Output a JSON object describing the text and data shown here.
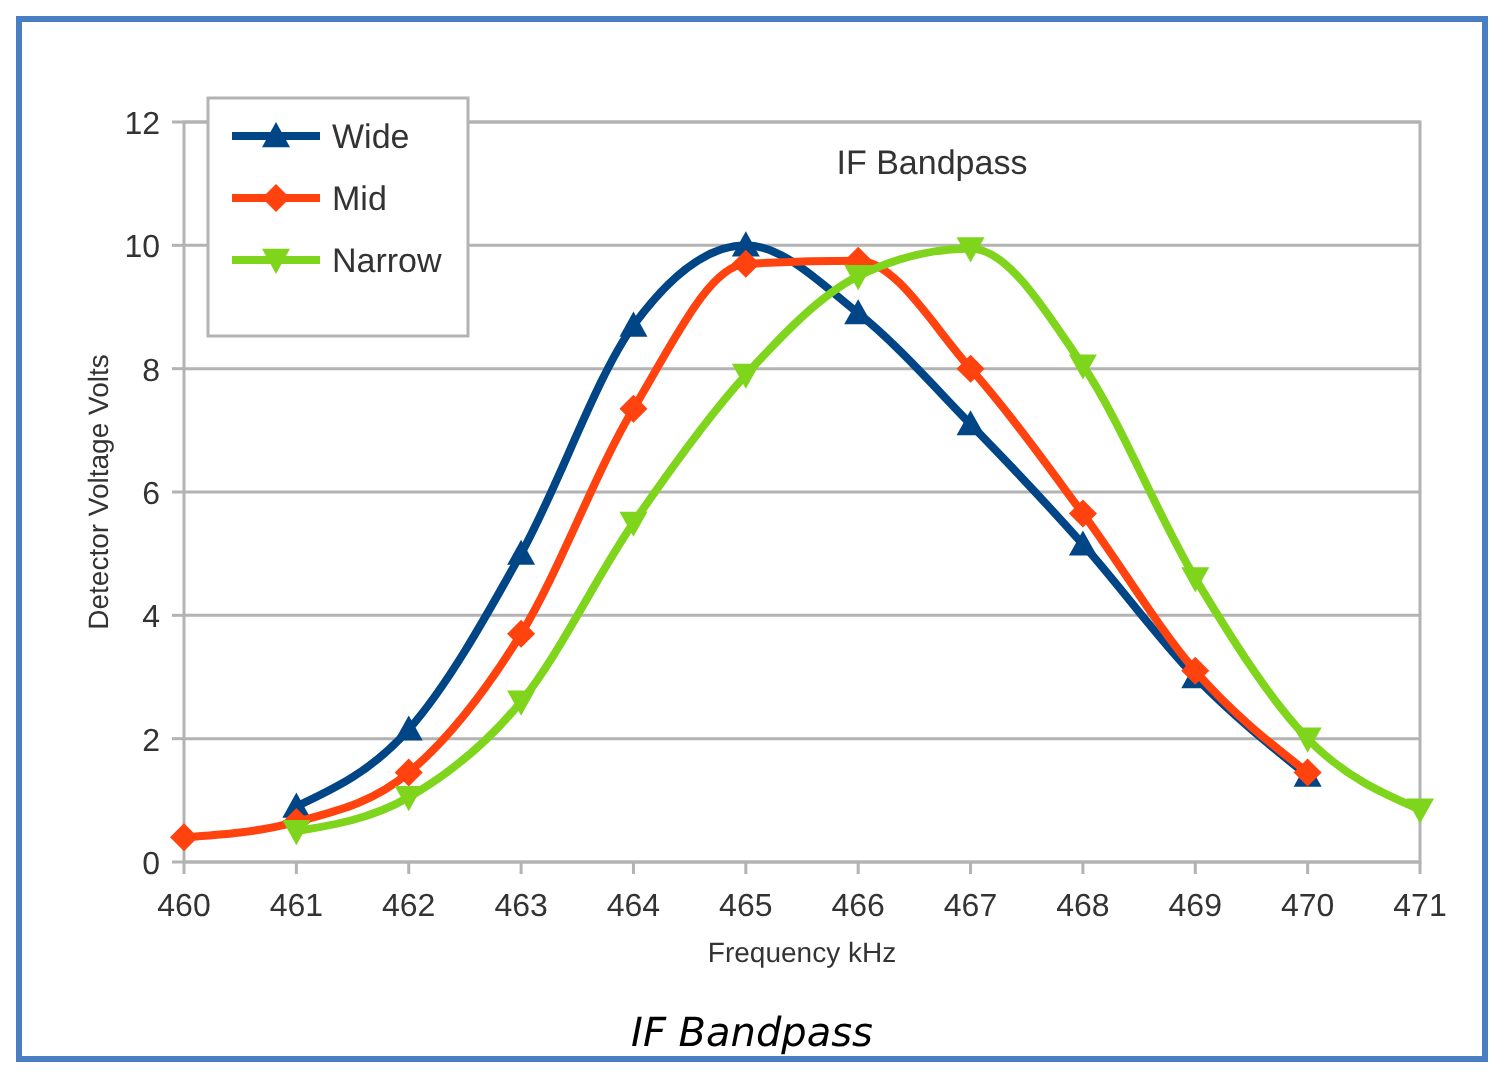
{
  "chart_data": {
    "type": "line",
    "subtitle": "IF Bandpass",
    "xlabel": "Frequency kHz",
    "ylabel": "Detector Voltage Volts",
    "annotations": [
      "IF Bandpass"
    ],
    "xlim": [
      460,
      471
    ],
    "xticks": [
      460,
      461,
      462,
      463,
      464,
      465,
      466,
      467,
      468,
      469,
      470,
      471
    ],
    "ylim": [
      0,
      12
    ],
    "yticks": [
      0,
      2,
      4,
      6,
      8,
      10,
      12
    ],
    "grid": "y",
    "legend": "top left",
    "series": [
      {
        "name": "Wide",
        "color": "#004586",
        "marker": "triangle",
        "x": [
          461,
          462,
          463,
          464,
          465,
          466,
          467,
          468,
          469,
          470
        ],
        "values": [
          0.9,
          2.15,
          5.0,
          8.7,
          10.0,
          8.9,
          7.1,
          5.15,
          3.0,
          1.4
        ]
      },
      {
        "name": "Mid",
        "color": "#ff420e",
        "marker": "diamond",
        "x": [
          460,
          461,
          462,
          463,
          464,
          465,
          466,
          467,
          468,
          469,
          470
        ],
        "values": [
          0.4,
          0.65,
          1.45,
          3.7,
          7.35,
          9.7,
          9.75,
          8.0,
          5.65,
          3.1,
          1.45
        ]
      },
      {
        "name": "Narrow",
        "color": "#7fd41c",
        "marker": "triangle-down",
        "x": [
          461,
          462,
          463,
          464,
          465,
          466,
          467,
          468,
          469,
          470,
          471
        ],
        "values": [
          0.5,
          1.05,
          2.6,
          5.5,
          7.9,
          9.5,
          9.95,
          8.05,
          4.6,
          2.0,
          0.85
        ]
      }
    ]
  }
}
